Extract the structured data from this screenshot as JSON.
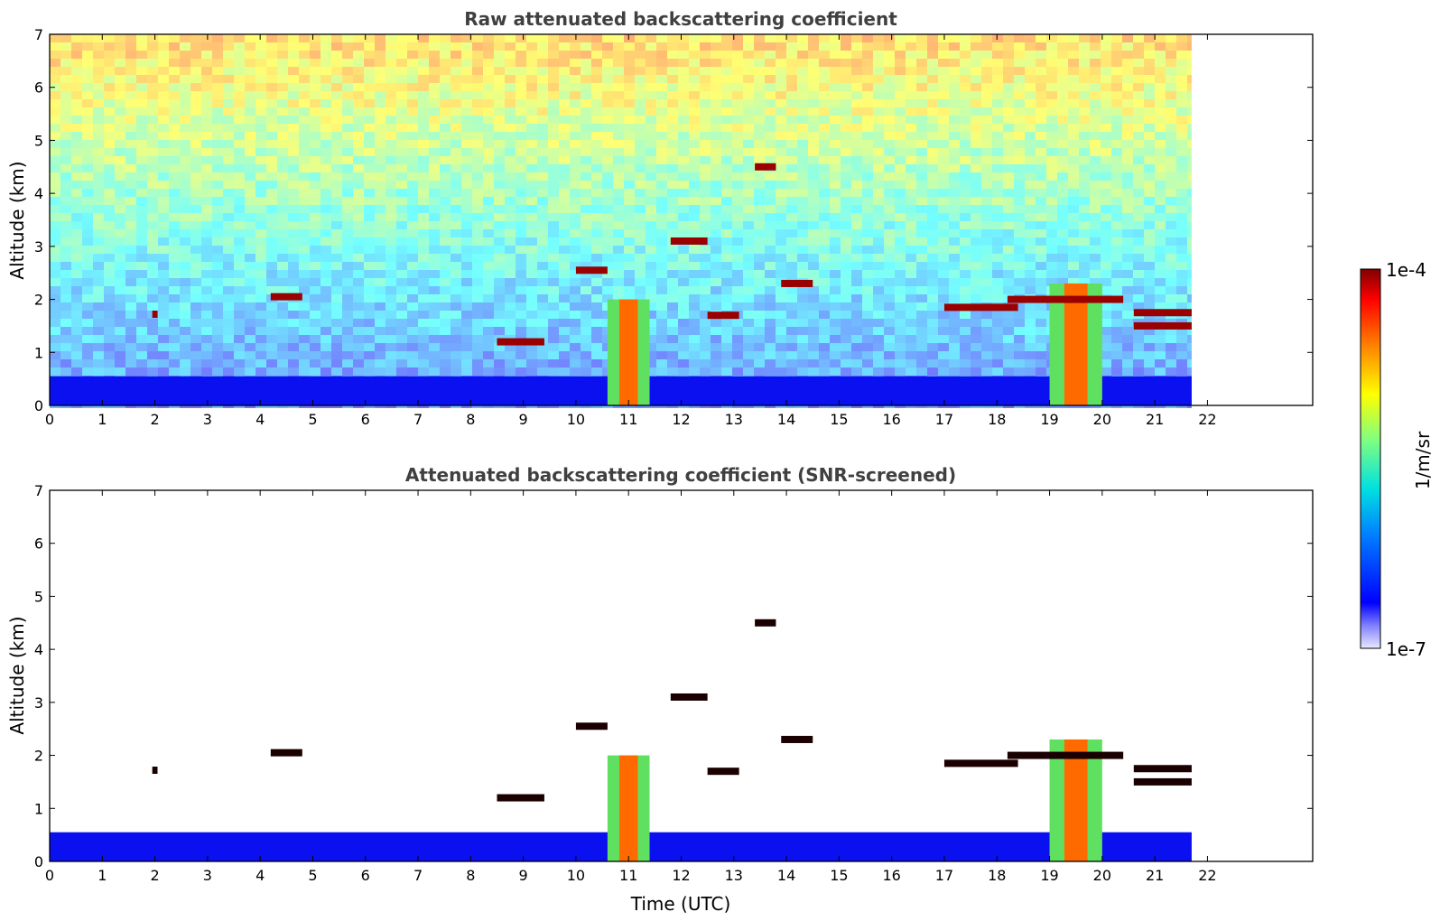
{
  "chart_data": [
    {
      "type": "heatmap",
      "title": "Raw attenuated backscattering coefficient",
      "xlabel": "",
      "ylabel": "Altitude (km)",
      "xlim": [
        0,
        24
      ],
      "ylim": [
        0,
        7
      ],
      "x_ticks": [
        "0",
        "1",
        "2",
        "3",
        "4",
        "5",
        "6",
        "7",
        "8",
        "9",
        "10",
        "11",
        "12",
        "13",
        "14",
        "15",
        "16",
        "17",
        "18",
        "19",
        "20",
        "21",
        "22"
      ],
      "y_ticks": [
        "0",
        "1",
        "2",
        "3",
        "4",
        "5",
        "6",
        "7"
      ],
      "data_end_time": 21.7,
      "noise": "raw",
      "features": [
        {
          "kind": "boundary_layer",
          "x": [
            0,
            21.7
          ],
          "top": 0.55
        },
        {
          "kind": "plume",
          "x": [
            10.6,
            11.4
          ],
          "base": 0,
          "top": 2.0
        },
        {
          "kind": "plume",
          "x": [
            19.0,
            20.0
          ],
          "base": 0,
          "top": 2.3
        },
        {
          "kind": "cloud",
          "x": [
            4.2,
            4.8
          ],
          "y": 2.05
        },
        {
          "kind": "cloud",
          "x": [
            1.95,
            2.05
          ],
          "y": 1.72
        },
        {
          "kind": "cloud",
          "x": [
            10.0,
            10.6
          ],
          "y": 2.55
        },
        {
          "kind": "cloud",
          "x": [
            11.8,
            12.5
          ],
          "y": 3.1
        },
        {
          "kind": "cloud",
          "x": [
            12.5,
            13.1
          ],
          "y": 1.7
        },
        {
          "kind": "cloud",
          "x": [
            13.4,
            13.8
          ],
          "y": 4.5
        },
        {
          "kind": "cloud",
          "x": [
            13.9,
            14.5
          ],
          "y": 2.3
        },
        {
          "kind": "cloud",
          "x": [
            17.0,
            18.4
          ],
          "y": 1.85
        },
        {
          "kind": "cloud",
          "x": [
            18.2,
            20.4
          ],
          "y": 2.0
        },
        {
          "kind": "cloud",
          "x": [
            20.6,
            21.7
          ],
          "y": 1.75
        },
        {
          "kind": "cloud",
          "x": [
            20.6,
            21.7
          ],
          "y": 1.5
        },
        {
          "kind": "cloud",
          "x": [
            8.5,
            9.4
          ],
          "y": 1.2
        }
      ]
    },
    {
      "type": "heatmap",
      "title": "Attenuated backscattering coefficient (SNR-screened)",
      "xlabel": "Time (UTC)",
      "ylabel": "Altitude (km)",
      "xlim": [
        0,
        24
      ],
      "ylim": [
        0,
        7
      ],
      "x_ticks": [
        "0",
        "1",
        "2",
        "3",
        "4",
        "5",
        "6",
        "7",
        "8",
        "9",
        "10",
        "11",
        "12",
        "13",
        "14",
        "15",
        "16",
        "17",
        "18",
        "19",
        "20",
        "21",
        "22"
      ],
      "y_ticks": [
        "0",
        "1",
        "2",
        "3",
        "4",
        "5",
        "6",
        "7"
      ],
      "data_end_time": 21.7,
      "noise": "screened",
      "features": [
        {
          "kind": "boundary_layer",
          "x": [
            0,
            21.7
          ],
          "top": 0.55
        },
        {
          "kind": "plume",
          "x": [
            10.6,
            11.4
          ],
          "base": 0,
          "top": 2.0
        },
        {
          "kind": "plume",
          "x": [
            19.0,
            20.0
          ],
          "base": 0,
          "top": 2.3
        },
        {
          "kind": "cloud",
          "x": [
            4.2,
            4.8
          ],
          "y": 2.05
        },
        {
          "kind": "cloud",
          "x": [
            1.95,
            2.05
          ],
          "y": 1.72
        },
        {
          "kind": "cloud",
          "x": [
            10.0,
            10.6
          ],
          "y": 2.55
        },
        {
          "kind": "cloud",
          "x": [
            11.8,
            12.5
          ],
          "y": 3.1
        },
        {
          "kind": "cloud",
          "x": [
            12.5,
            13.1
          ],
          "y": 1.7
        },
        {
          "kind": "cloud",
          "x": [
            13.4,
            13.8
          ],
          "y": 4.5
        },
        {
          "kind": "cloud",
          "x": [
            13.9,
            14.5
          ],
          "y": 2.3
        },
        {
          "kind": "cloud",
          "x": [
            17.0,
            18.4
          ],
          "y": 1.85
        },
        {
          "kind": "cloud",
          "x": [
            18.2,
            20.4
          ],
          "y": 2.0
        },
        {
          "kind": "cloud",
          "x": [
            20.6,
            21.7
          ],
          "y": 1.75
        },
        {
          "kind": "cloud",
          "x": [
            20.6,
            21.7
          ],
          "y": 1.5
        },
        {
          "kind": "cloud",
          "x": [
            8.5,
            9.4
          ],
          "y": 1.2
        }
      ]
    }
  ],
  "colorbar": {
    "label": "1/m/sr",
    "min_label": "1e-7",
    "max_label": "1e-4",
    "colormap": "jet"
  },
  "colors": {
    "axis": "#000000",
    "title": "#404040"
  }
}
